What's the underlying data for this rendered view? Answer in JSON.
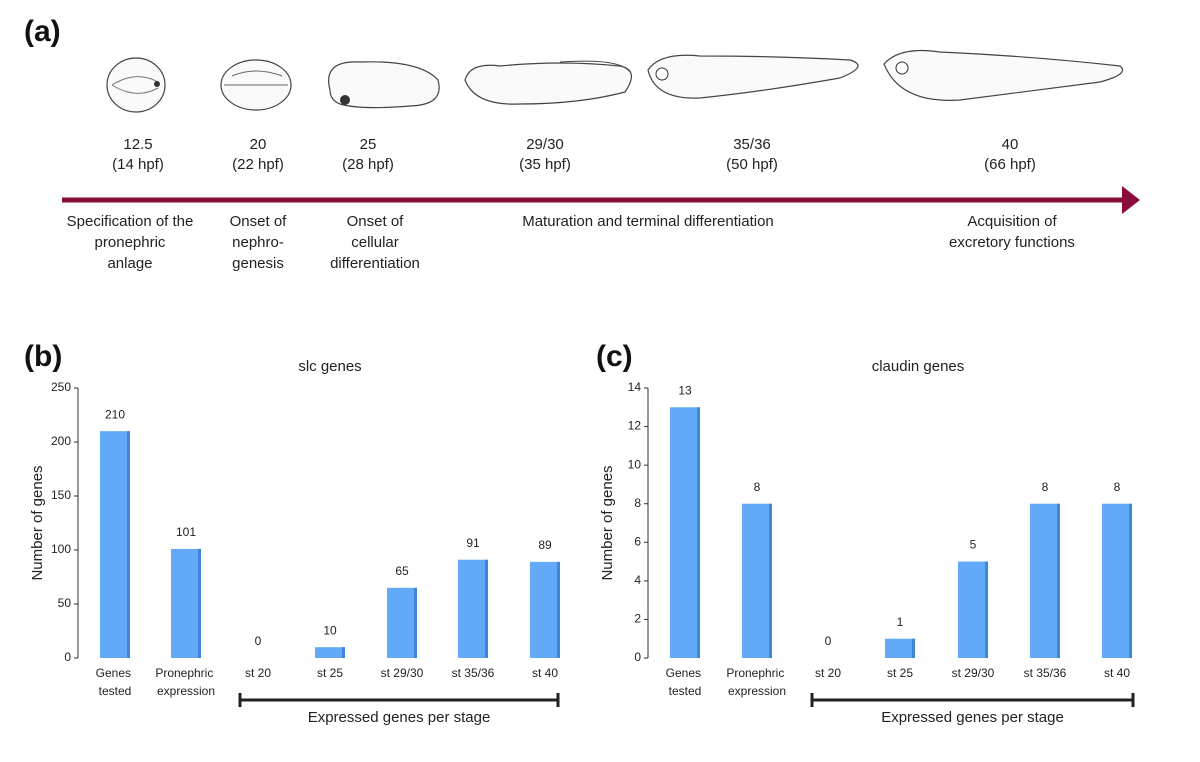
{
  "panel_a": {
    "label": "(a)",
    "stages": [
      {
        "stage": "12.5",
        "time": "(14 hpf)"
      },
      {
        "stage": "20",
        "time": "(22 hpf)"
      },
      {
        "stage": "25",
        "time": "(28 hpf)"
      },
      {
        "stage": "29/30",
        "time": "(35 hpf)"
      },
      {
        "stage": "35/36",
        "time": "(50 hpf)"
      },
      {
        "stage": "40",
        "time": "(66 hpf)"
      }
    ],
    "phases": [
      [
        "Specification of the",
        "pronephric",
        "anlage"
      ],
      [
        "Onset of",
        "nephro-",
        "genesis"
      ],
      [
        "Onset of",
        "cellular",
        "differentiation"
      ],
      [
        "Maturation and terminal differentiation"
      ],
      [
        "Acquisition of",
        "excretory functions"
      ]
    ]
  },
  "chart_data": [
    {
      "type": "bar",
      "panel": "(b)",
      "title": "slc genes",
      "ylabel": "Number of genes",
      "categories": [
        "Genes tested",
        "Pronephric expression",
        "st 20",
        "st 25",
        "st 29/30",
        "st 35/36",
        "st 40"
      ],
      "values": [
        210,
        101,
        0,
        10,
        65,
        91,
        89
      ],
      "color": "#62a9f8",
      "ylim": [
        0,
        250
      ],
      "yticks": [
        0,
        50,
        100,
        150,
        200,
        250
      ],
      "bracket_label": "Expressed genes per stage"
    },
    {
      "type": "bar",
      "panel": "(c)",
      "title": "claudin genes",
      "ylabel": "Number of genes",
      "categories": [
        "Genes tested",
        "Pronephric expression",
        "st 20",
        "st 25",
        "st 29/30",
        "st 35/36",
        "st 40"
      ],
      "values": [
        13,
        8,
        0,
        1,
        5,
        8,
        8
      ],
      "color": "#62a9f8",
      "ylim": [
        0,
        14
      ],
      "yticks": [
        0,
        2,
        4,
        6,
        8,
        10,
        12,
        14
      ],
      "bracket_label": "Expressed genes per stage"
    }
  ]
}
